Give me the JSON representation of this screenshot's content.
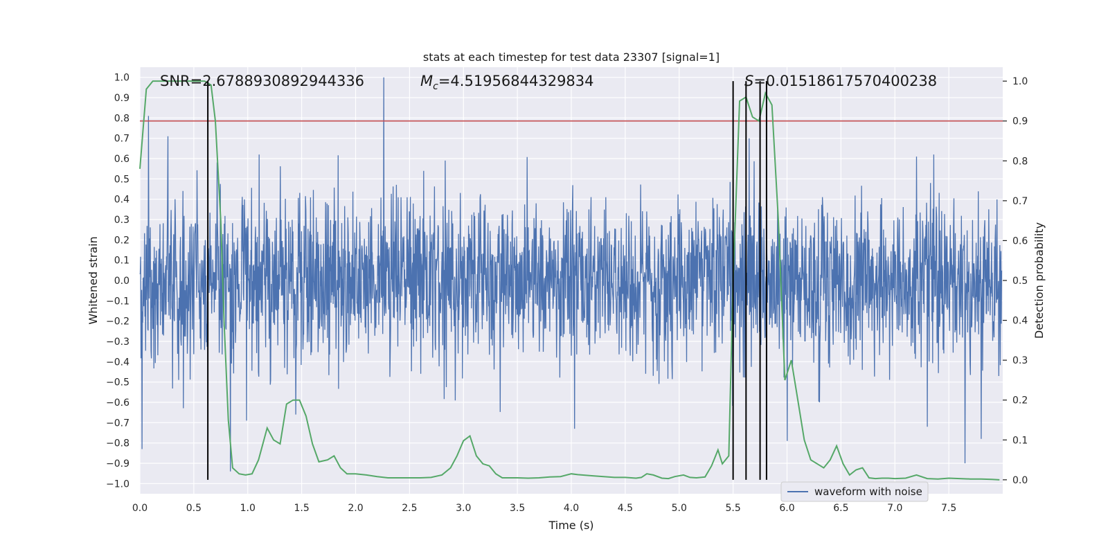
{
  "chart_data": {
    "type": "line",
    "title": "stats at each timestep for test data 23307 [signal=1]",
    "xlabel": "Time (s)",
    "ylabel": "Whitened strain",
    "y2label": "Detection probability",
    "xlim": [
      0,
      8.0
    ],
    "ylim": [
      -1.05,
      1.05
    ],
    "y2lim": [
      -0.035,
      1.035
    ],
    "xticks": [
      "0.0",
      "0.5",
      "1.0",
      "1.5",
      "2.0",
      "2.5",
      "3.0",
      "3.5",
      "4.0",
      "4.5",
      "5.0",
      "5.5",
      "6.0",
      "6.5",
      "7.0",
      "7.5"
    ],
    "yticks": [
      "1.0",
      "0.9",
      "0.8",
      "0.7",
      "0.6",
      "0.5",
      "0.4",
      "0.3",
      "0.2",
      "0.1",
      "0.0",
      "−0.1",
      "−0.2",
      "−0.3",
      "−0.4",
      "−0.5",
      "−0.6",
      "−0.7",
      "−0.8",
      "−0.9",
      "−1.0"
    ],
    "y2ticks": [
      "1.0",
      "0.9",
      "0.8",
      "0.7",
      "0.6",
      "0.5",
      "0.4",
      "0.3",
      "0.2",
      "0.1",
      "0.0"
    ],
    "grid": true,
    "legend_position": "lower-right",
    "annotations": {
      "snr": "SNR=2.6788930892944336",
      "mc_symbol": "M",
      "mc_sub": "c",
      "mc_value": "=4.51956844329834",
      "s_symbol": "S",
      "s_value": "=0.01518617570400238"
    },
    "threshold": 0.9,
    "threshold_color": "#c44e52",
    "detection_vlines": [
      0.63,
      5.5,
      5.62,
      5.75,
      5.81
    ],
    "series": [
      {
        "name": "waveform with noise",
        "color": "#4c72b0",
        "kind": "waveform",
        "typical_amplitude": 0.32,
        "notable_spikes": [
          {
            "t": 0.02,
            "y": -0.83
          },
          {
            "t": 0.08,
            "y": 0.81
          },
          {
            "t": 0.26,
            "y": 0.71
          },
          {
            "t": 0.84,
            "y": -0.94
          },
          {
            "t": 0.99,
            "y": -0.69
          },
          {
            "t": 2.26,
            "y": 1.0
          },
          {
            "t": 2.83,
            "y": 0.59
          },
          {
            "t": 4.03,
            "y": -0.73
          },
          {
            "t": 5.65,
            "y": 0.7
          },
          {
            "t": 6.0,
            "y": -0.79
          },
          {
            "t": 6.3,
            "y": -0.6
          },
          {
            "t": 7.2,
            "y": 0.61
          },
          {
            "t": 7.3,
            "y": -0.72
          },
          {
            "t": 7.65,
            "y": -0.9
          },
          {
            "t": 7.8,
            "y": -0.78
          }
        ]
      },
      {
        "color": "#55a868",
        "kind": "probability",
        "x": [
          0.0,
          0.06,
          0.12,
          0.18,
          0.24,
          0.3,
          0.36,
          0.42,
          0.48,
          0.54,
          0.6,
          0.66,
          0.7,
          0.75,
          0.78,
          0.82,
          0.86,
          0.92,
          0.98,
          1.04,
          1.1,
          1.18,
          1.24,
          1.3,
          1.36,
          1.42,
          1.48,
          1.54,
          1.6,
          1.66,
          1.74,
          1.8,
          1.86,
          1.92,
          2.0,
          2.1,
          2.2,
          2.3,
          2.4,
          2.5,
          2.6,
          2.7,
          2.8,
          2.88,
          2.94,
          3.0,
          3.06,
          3.12,
          3.18,
          3.24,
          3.3,
          3.36,
          3.5,
          3.6,
          3.7,
          3.8,
          3.9,
          4.0,
          4.06,
          4.2,
          4.4,
          4.5,
          4.6,
          4.65,
          4.7,
          4.76,
          4.84,
          4.9,
          4.96,
          5.04,
          5.1,
          5.16,
          5.24,
          5.3,
          5.36,
          5.4,
          5.46,
          5.5,
          5.56,
          5.62,
          5.68,
          5.74,
          5.8,
          5.86,
          5.92,
          5.98,
          6.04,
          6.1,
          6.16,
          6.22,
          6.28,
          6.34,
          6.4,
          6.46,
          6.52,
          6.58,
          6.64,
          6.7,
          6.76,
          6.82,
          6.88,
          6.94,
          7.0,
          7.1,
          7.2,
          7.3,
          7.4,
          7.5,
          7.6,
          7.7,
          7.8,
          7.9,
          7.97
        ],
        "y": [
          0.78,
          0.98,
          1.0,
          1.0,
          1.0,
          1.0,
          1.0,
          1.0,
          1.0,
          1.0,
          1.0,
          0.99,
          0.9,
          0.65,
          0.4,
          0.15,
          0.03,
          0.015,
          0.012,
          0.015,
          0.05,
          0.13,
          0.1,
          0.09,
          0.19,
          0.2,
          0.2,
          0.16,
          0.09,
          0.045,
          0.05,
          0.06,
          0.03,
          0.015,
          0.015,
          0.012,
          0.008,
          0.005,
          0.005,
          0.005,
          0.005,
          0.006,
          0.012,
          0.03,
          0.06,
          0.098,
          0.11,
          0.06,
          0.04,
          0.035,
          0.015,
          0.005,
          0.005,
          0.004,
          0.005,
          0.007,
          0.008,
          0.015,
          0.013,
          0.01,
          0.006,
          0.006,
          0.004,
          0.006,
          0.015,
          0.012,
          0.004,
          0.003,
          0.008,
          0.012,
          0.006,
          0.005,
          0.007,
          0.035,
          0.075,
          0.04,
          0.06,
          0.5,
          0.95,
          0.96,
          0.91,
          0.9,
          0.97,
          0.94,
          0.65,
          0.25,
          0.3,
          0.2,
          0.1,
          0.05,
          0.04,
          0.03,
          0.05,
          0.085,
          0.04,
          0.012,
          0.025,
          0.03,
          0.005,
          0.003,
          0.004,
          0.004,
          0.003,
          0.004,
          0.012,
          0.003,
          0.002,
          0.004,
          0.003,
          0.002,
          0.002,
          0.001,
          0.0
        ]
      }
    ]
  }
}
